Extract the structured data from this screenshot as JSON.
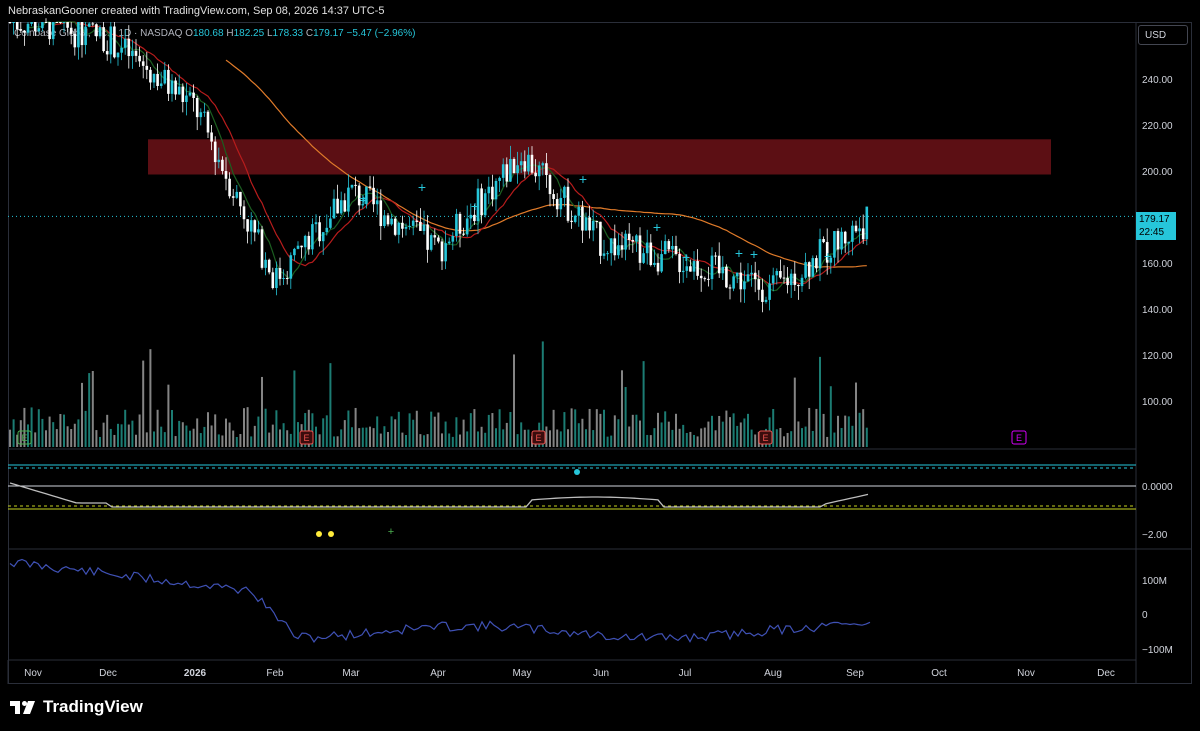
{
  "header": {
    "text": "NebraskanGooner created with TradingView.com, Sep 08, 2026 14:37 UTC-5"
  },
  "legend": {
    "symbol": "Coinbase Global, Inc. · 1D · NASDAQ",
    "o_label": "O",
    "open": "180.68",
    "h_label": "H",
    "high": "182.25",
    "l_label": "L",
    "low": "178.33",
    "c_label": "C",
    "close": "179.17",
    "change": "−5.47 (−2.96%)"
  },
  "currency_button": "USD",
  "price_tag": {
    "price": "179.17",
    "countdown": "22:45"
  },
  "brand": {
    "name": "TradingView"
  },
  "colors": {
    "up": "#26c6da",
    "down": "#ffffff",
    "resistance_zone": "#5c0f14",
    "ma_long": "#e07b2a",
    "ma_mid": "#b71c1c",
    "ma_short": "#1b5e20",
    "rsi_line": "#3f51b5",
    "event_marker": "#ef5350",
    "future_event": "#d500f9"
  },
  "chart_data": [
    {
      "type": "candlestick",
      "title": "",
      "price_axis_ticks": [
        "240.00",
        "220.00",
        "200.00",
        "160.00",
        "140.00",
        "120.00",
        "100.00"
      ],
      "ylim": [
        80,
        262
      ],
      "time_axis_ticks": [
        "Nov",
        "Dec",
        "2026",
        "Feb",
        "Mar",
        "Apr",
        "May",
        "Jun",
        "Jul",
        "Aug",
        "Sep",
        "Oct",
        "Nov",
        "Dec"
      ],
      "current_price": 179.17,
      "resistance_zone": [
        197,
        212
      ],
      "ohlc_sparse": [
        {
          "date": "Nov",
          "close": 262
        },
        {
          "date": "Dec",
          "close": 255
        },
        {
          "date": "2026",
          "close": 226
        },
        {
          "date": "Feb",
          "close": 152
        },
        {
          "date": "Mar",
          "close": 190
        },
        {
          "date": "Apr",
          "close": 165
        },
        {
          "date": "May",
          "close": 206
        },
        {
          "date": "Jun",
          "close": 168
        },
        {
          "date": "Jul",
          "close": 160
        },
        {
          "date": "Aug",
          "close": 148
        },
        {
          "date": "Sep",
          "close": 179.17
        }
      ],
      "earnings_markers": [
        {
          "date": "Feb",
          "label": "E"
        },
        {
          "date": "May",
          "label": "E"
        },
        {
          "date": "Aug",
          "label": "E"
        },
        {
          "date": "Nov",
          "label": "E",
          "future": true
        }
      ],
      "corner_marker": {
        "label": "E"
      }
    },
    {
      "type": "line",
      "title": "",
      "axis_ticks": [
        "0.0000",
        "−2.00"
      ],
      "ylim": [
        -3,
        1.5
      ]
    },
    {
      "type": "line",
      "title": "",
      "axis_ticks": [
        "100M",
        "0",
        "−100M"
      ],
      "ylim": [
        -120000000,
        170000000
      ]
    }
  ]
}
